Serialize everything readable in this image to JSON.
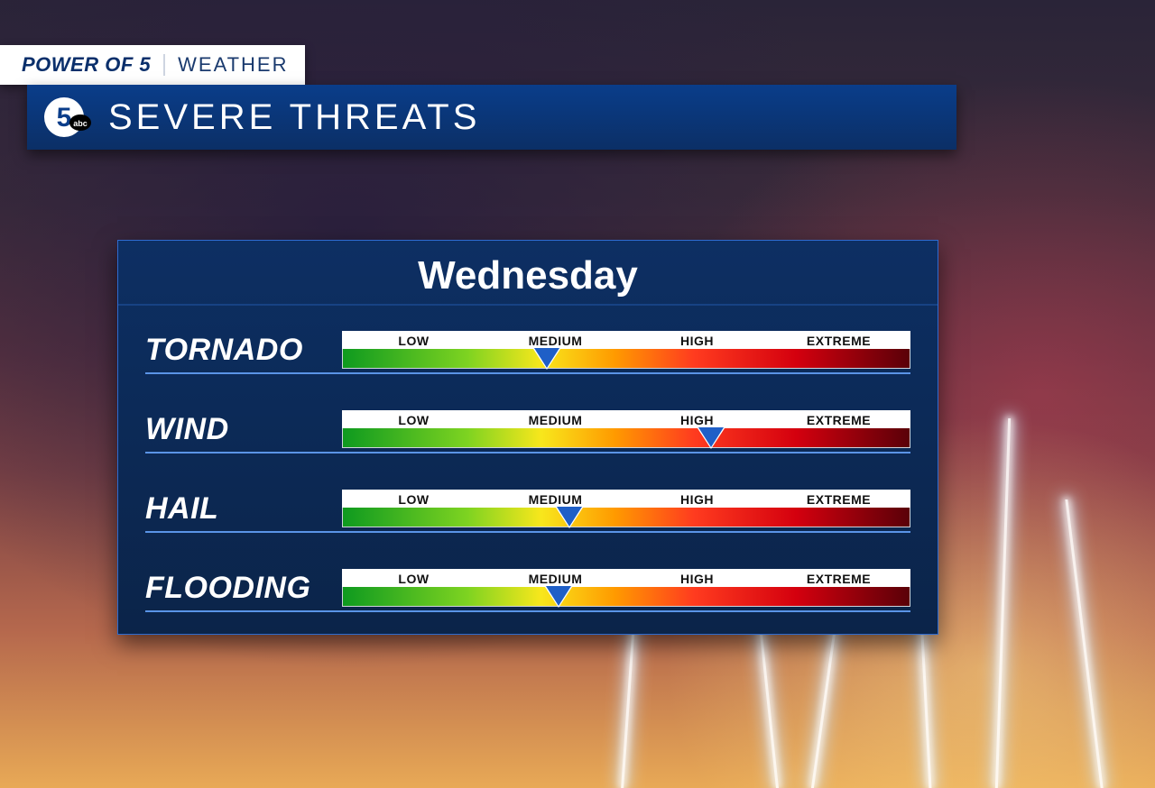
{
  "tag": {
    "brand": "POWER OF 5",
    "category": "WEATHER",
    "brand_color": "#0a2f6b",
    "bg_color": "#ffffff"
  },
  "logo": {
    "circle_fill": "#ffffff",
    "five_fill": "#0a3d8a",
    "abc_fill": "#000000",
    "abc_text": "#ffffff"
  },
  "title": {
    "text": "SEVERE THREATS",
    "bg_gradient_top": "#0a3d8a",
    "bg_gradient_bottom": "#0b2f66",
    "text_color": "#ffffff"
  },
  "panel": {
    "header": "Wednesday",
    "bg_top": "#0d2f63",
    "bg_bottom": "#0b2449",
    "border_color": "#2e6bcf",
    "header_color": "#ffffff",
    "row_underline": "#5a94e7",
    "label_color": "#ffffff",
    "label_fontsize": 34,
    "gauge": {
      "scale_labels": [
        "LOW",
        "MEDIUM",
        "HIGH",
        "EXTREME"
      ],
      "scale_bg": "#ffffff",
      "scale_text": "#111111",
      "gradient_stops": [
        {
          "pct": 0,
          "color": "#0e9a1f"
        },
        {
          "pct": 22,
          "color": "#7ed321"
        },
        {
          "pct": 35,
          "color": "#f8e71c"
        },
        {
          "pct": 48,
          "color": "#ff9a00"
        },
        {
          "pct": 62,
          "color": "#ff3b1f"
        },
        {
          "pct": 80,
          "color": "#d4000e"
        },
        {
          "pct": 100,
          "color": "#5a0008"
        }
      ],
      "pointer_fill": "#1f5fc7",
      "pointer_border": "#ffffff",
      "pointer_border_width": 2
    },
    "threats": [
      {
        "name": "TORNADO",
        "pointer_pct": 36
      },
      {
        "name": "WIND",
        "pointer_pct": 65
      },
      {
        "name": "HAIL",
        "pointer_pct": 40
      },
      {
        "name": "FLOODING",
        "pointer_pct": 38
      }
    ]
  },
  "background": {
    "lightning_color": "#ffffff"
  }
}
